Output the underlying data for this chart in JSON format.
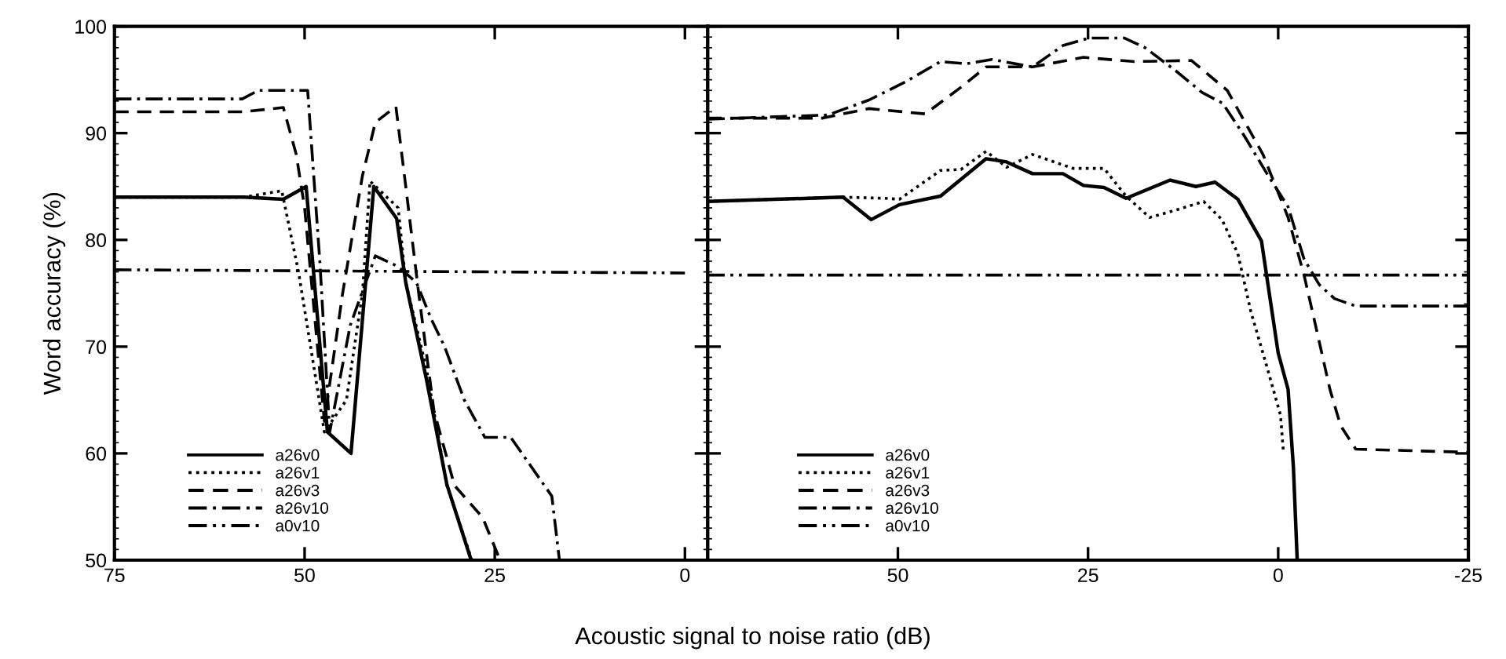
{
  "chart_data": [
    {
      "type": "line",
      "ylabel": "Word accuracy (%)",
      "xlabel": "Acoustic signal to noise ratio (dB)",
      "xlim": [
        75,
        -3
      ],
      "xticks": [
        75,
        50,
        25,
        0
      ],
      "ylim": [
        50,
        100
      ],
      "yticks": [
        50,
        60,
        70,
        80,
        90,
        100
      ],
      "legend": "bottom left",
      "grid": false,
      "tick_labels": "xy",
      "series": [
        {
          "name": "a26v0",
          "color": "#000000",
          "line_style": "solid",
          "x": [
            75,
            58,
            52.8,
            49.8,
            47,
            43.9,
            40.9,
            37.9,
            36.7,
            34,
            31.3,
            28.1
          ],
          "values": [
            84,
            84,
            83.8,
            85,
            62,
            60,
            85,
            82,
            76,
            67,
            57.1,
            50
          ]
        },
        {
          "name": "a26v1",
          "color": "#000000",
          "line_style": "dotted",
          "x": [
            75,
            58,
            53,
            50.8,
            47.4,
            44.5,
            42.4,
            41.4,
            37.7,
            36.7,
            34,
            31.3,
            28
          ],
          "values": [
            84,
            84,
            84.6,
            77,
            62,
            65,
            75,
            85.5,
            83,
            76,
            68,
            57,
            50
          ]
        },
        {
          "name": "a26v3",
          "color": "#000000",
          "line_style": "dashed",
          "x": [
            75,
            58,
            52.8,
            51.1,
            50,
            47.4,
            45,
            42.4,
            40.7,
            38,
            36.7,
            35,
            33,
            30.3,
            26.6,
            24.3
          ],
          "values": [
            92,
            92,
            92.4,
            88,
            83,
            63,
            75,
            86,
            91,
            92.5,
            85,
            75,
            64,
            57,
            54,
            50
          ]
        },
        {
          "name": "a26v10",
          "color": "#000000",
          "line_style": "dashdot",
          "x": [
            75,
            58.2,
            56.1,
            49.6,
            48,
            46.7,
            44,
            40.7,
            37.7,
            35.3,
            33.3,
            31.6,
            29,
            26.3,
            22.9,
            17.5,
            16.5
          ],
          "values": [
            93.2,
            93.2,
            94,
            94,
            78,
            62,
            72,
            78.5,
            77.5,
            76,
            72.5,
            70,
            65,
            61.5,
            61.5,
            56,
            50
          ]
        },
        {
          "name": "a0v10",
          "color": "#000000",
          "line_style": "dashdotdot",
          "x": [
            75,
            0
          ],
          "values": [
            77.2,
            76.9
          ]
        }
      ]
    },
    {
      "type": "line",
      "xlim": [
        75,
        -25
      ],
      "xticks": [
        50,
        25,
        0,
        -25
      ],
      "ylim": [
        50,
        100
      ],
      "yticks": [
        50,
        60,
        70,
        80,
        90,
        100
      ],
      "legend": "bottom left",
      "grid": false,
      "tick_labels": "x",
      "series": [
        {
          "name": "a26v0",
          "color": "#000000",
          "line_style": "solid",
          "x": [
            75,
            57.2,
            53.5,
            49.8,
            44.4,
            38.4,
            35.7,
            32.3,
            28.3,
            25.6,
            22.9,
            20,
            14.2,
            10.8,
            8.3,
            5.3,
            2.2,
            0,
            -1.3,
            -2,
            -2.5
          ],
          "values": [
            83.6,
            84,
            81.9,
            83.3,
            84.1,
            87.6,
            87.3,
            86.2,
            86.2,
            85.1,
            84.9,
            83.9,
            85.6,
            85,
            85.4,
            83.8,
            79.9,
            69.4,
            66,
            58.7,
            50
          ]
        },
        {
          "name": "a26v1",
          "color": "#000000",
          "line_style": "dotted",
          "x": [
            75,
            57.2,
            51.8,
            49.8,
            44.4,
            41.7,
            38.4,
            35.7,
            32.3,
            27,
            22.9,
            20,
            16.9,
            13.4,
            9.8,
            7.4,
            5.3,
            3.6,
            1.6,
            -0.3,
            -0.7
          ],
          "values": [
            83.6,
            84,
            83.9,
            83.8,
            86.5,
            86.6,
            88.3,
            86.8,
            88,
            86.7,
            86.7,
            84.1,
            82.1,
            82.8,
            83.6,
            81.9,
            78.7,
            73.3,
            68.4,
            63.6,
            60
          ]
        },
        {
          "name": "a26v3",
          "color": "#000000",
          "line_style": "dashed",
          "x": [
            75,
            60,
            53.8,
            46.4,
            41.7,
            38.4,
            32.3,
            25.6,
            18.9,
            11.4,
            6.7,
            2,
            -1.3,
            -3.4,
            -5.1,
            -6.8,
            -8.2,
            -10.2,
            -25
          ],
          "values": [
            91.4,
            91.4,
            92.3,
            91.8,
            94.3,
            96.2,
            96.2,
            97.1,
            96.7,
            96.8,
            94,
            88,
            82.1,
            76.7,
            71.4,
            66,
            62.6,
            60.4,
            60.1
          ]
        },
        {
          "name": "a26v10",
          "color": "#000000",
          "line_style": "dashdot",
          "x": [
            75,
            59.2,
            53.8,
            49,
            44.4,
            41,
            37.6,
            32.3,
            28.3,
            24.9,
            20.2,
            17.5,
            13.4,
            10,
            7.3,
            4.6,
            1.3,
            -1.3,
            -3.4,
            -5.4,
            -7.4,
            -10.2,
            -25
          ],
          "values": [
            91.3,
            91.7,
            93.1,
            94.8,
            96.7,
            96.5,
            96.9,
            96.2,
            98.2,
            98.9,
            98.9,
            98,
            95.8,
            93.8,
            92.8,
            89.9,
            86,
            83.1,
            78.2,
            75.8,
            74.5,
            73.8,
            73.8
          ]
        },
        {
          "name": "a0v10",
          "color": "#000000",
          "line_style": "dashdotdot",
          "x": [
            75,
            -25
          ],
          "values": [
            76.7,
            76.7
          ]
        }
      ]
    }
  ]
}
